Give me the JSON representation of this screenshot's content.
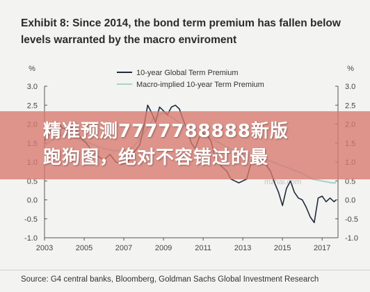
{
  "title_line1": "Exhibit 8: Since 2014, the bond term premium has fallen below",
  "title_line2": "levels warranted by the macro enviroment",
  "source": "Source: G4 central banks, Bloomberg, Goldman Sachs Global Investment Research",
  "banner": {
    "line1": "精准预测7777788888新版",
    "line2": "跑狗图，绝对不容错过的最"
  },
  "watermark": "mzhai.com",
  "colors": {
    "series_global": "#1f2a3a",
    "series_macro": "#a9d2cf",
    "banner": "#d7786e"
  },
  "chart_data": {
    "type": "line",
    "title": "Exhibit 8: Since 2014, the bond term premium has fallen below levels warranted by the macro enviroment",
    "ylabel_left": "%",
    "ylabel_right": "%",
    "xlim": [
      2003,
      2017.8
    ],
    "ylim": [
      -1.0,
      3.0
    ],
    "x_ticks": [
      "2003",
      "2005",
      "2007",
      "2009",
      "2011",
      "2013",
      "2015",
      "2017"
    ],
    "y_ticks": [
      "3.0",
      "2.5",
      "2.0",
      "1.5",
      "1.0",
      "0.5",
      "0.0",
      "-0.5",
      "-1.0"
    ],
    "legend_position": "top-center",
    "grid": false,
    "series": [
      {
        "name": "10-year Global Term Premium",
        "color": "#1f2a3a",
        "points": [
          [
            2003.0,
            1.55
          ],
          [
            2003.3,
            1.85
          ],
          [
            2003.6,
            2.05
          ],
          [
            2003.9,
            1.9
          ],
          [
            2004.2,
            1.85
          ],
          [
            2004.5,
            1.95
          ],
          [
            2004.8,
            1.65
          ],
          [
            2005.1,
            1.5
          ],
          [
            2005.4,
            1.3
          ],
          [
            2005.7,
            1.15
          ],
          [
            2006.0,
            1.05
          ],
          [
            2006.3,
            1.2
          ],
          [
            2006.6,
            1.0
          ],
          [
            2006.9,
            0.95
          ],
          [
            2007.2,
            1.0
          ],
          [
            2007.5,
            1.25
          ],
          [
            2007.8,
            1.45
          ],
          [
            2008.0,
            1.9
          ],
          [
            2008.2,
            2.5
          ],
          [
            2008.4,
            2.3
          ],
          [
            2008.6,
            2.05
          ],
          [
            2008.8,
            2.45
          ],
          [
            2009.0,
            2.35
          ],
          [
            2009.2,
            2.25
          ],
          [
            2009.4,
            2.45
          ],
          [
            2009.6,
            2.5
          ],
          [
            2009.8,
            2.4
          ],
          [
            2010.0,
            2.1
          ],
          [
            2010.2,
            1.85
          ],
          [
            2010.4,
            1.5
          ],
          [
            2010.6,
            1.35
          ],
          [
            2010.8,
            1.65
          ],
          [
            2011.0,
            1.75
          ],
          [
            2011.2,
            1.7
          ],
          [
            2011.4,
            1.55
          ],
          [
            2011.6,
            1.1
          ],
          [
            2011.8,
            0.95
          ],
          [
            2012.0,
            0.85
          ],
          [
            2012.2,
            0.75
          ],
          [
            2012.4,
            0.55
          ],
          [
            2012.6,
            0.5
          ],
          [
            2012.8,
            0.45
          ],
          [
            2013.0,
            0.5
          ],
          [
            2013.2,
            0.55
          ],
          [
            2013.4,
            0.95
          ],
          [
            2013.6,
            1.3
          ],
          [
            2013.8,
            1.2
          ],
          [
            2014.0,
            1.05
          ],
          [
            2014.2,
            0.9
          ],
          [
            2014.4,
            0.75
          ],
          [
            2014.6,
            0.45
          ],
          [
            2014.8,
            0.2
          ],
          [
            2015.0,
            -0.15
          ],
          [
            2015.2,
            0.3
          ],
          [
            2015.4,
            0.5
          ],
          [
            2015.6,
            0.2
          ],
          [
            2015.8,
            0.05
          ],
          [
            2016.0,
            0.0
          ],
          [
            2016.2,
            -0.2
          ],
          [
            2016.4,
            -0.45
          ],
          [
            2016.6,
            -0.6
          ],
          [
            2016.8,
            0.05
          ],
          [
            2017.0,
            0.1
          ],
          [
            2017.2,
            -0.05
          ],
          [
            2017.4,
            0.05
          ],
          [
            2017.6,
            -0.05
          ],
          [
            2017.7,
            0.0
          ]
        ]
      },
      {
        "name": "Macro-implied 10-year Term Premium",
        "color": "#a9d2cf",
        "points": [
          [
            2003.0,
            1.45
          ],
          [
            2003.5,
            1.6
          ],
          [
            2004.0,
            1.75
          ],
          [
            2004.5,
            1.65
          ],
          [
            2005.0,
            1.55
          ],
          [
            2005.5,
            1.45
          ],
          [
            2006.0,
            1.35
          ],
          [
            2006.5,
            1.3
          ],
          [
            2007.0,
            1.3
          ],
          [
            2007.5,
            1.4
          ],
          [
            2008.0,
            1.75
          ],
          [
            2008.5,
            2.15
          ],
          [
            2009.0,
            2.3
          ],
          [
            2009.5,
            2.15
          ],
          [
            2010.0,
            1.95
          ],
          [
            2010.5,
            1.85
          ],
          [
            2011.0,
            1.75
          ],
          [
            2011.5,
            1.6
          ],
          [
            2012.0,
            1.45
          ],
          [
            2012.5,
            1.3
          ],
          [
            2013.0,
            1.2
          ],
          [
            2013.5,
            1.15
          ],
          [
            2014.0,
            1.1
          ],
          [
            2014.5,
            1.0
          ],
          [
            2015.0,
            0.9
          ],
          [
            2015.5,
            0.8
          ],
          [
            2016.0,
            0.7
          ],
          [
            2016.5,
            0.55
          ],
          [
            2017.0,
            0.5
          ],
          [
            2017.5,
            0.45
          ],
          [
            2017.7,
            0.45
          ]
        ]
      }
    ]
  }
}
